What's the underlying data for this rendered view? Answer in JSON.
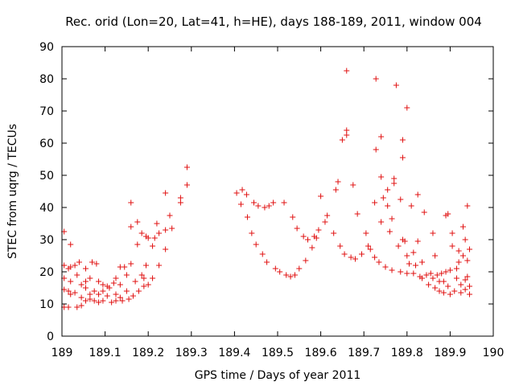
{
  "chart_data": {
    "type": "scatter",
    "title": "Rec. orid (Lon=20, Lat=41, h=HE), days 188-189, 2011, window 004",
    "xlabel": "GPS time / Days of year 2011",
    "ylabel": "STEC from uqrg / TECUs",
    "xlim": [
      189,
      190
    ],
    "ylim": [
      0,
      90
    ],
    "grid": false,
    "legend": "none",
    "x_ticks": [
      189,
      189.1,
      189.2,
      189.3,
      189.4,
      189.5,
      189.6,
      189.7,
      189.8,
      189.9,
      190
    ],
    "x_tick_labels": [
      "189",
      "189.1",
      "189.2",
      "189.3",
      "189.4",
      "189.5",
      "189.6",
      "189.7",
      "189.8",
      "189.9",
      "190"
    ],
    "y_ticks": [
      0,
      10,
      20,
      30,
      40,
      50,
      60,
      70,
      80,
      90
    ],
    "y_tick_labels": [
      "0",
      "10",
      "20",
      "30",
      "40",
      "50",
      "60",
      "70",
      "80",
      "90"
    ],
    "marker": "+",
    "color": "#e01010",
    "series": [
      {
        "name": "STEC",
        "points": [
          [
            189.005,
            32.5
          ],
          [
            189.005,
            22
          ],
          [
            189.005,
            18
          ],
          [
            189.005,
            14.5
          ],
          [
            189.005,
            9
          ],
          [
            189.015,
            21
          ],
          [
            189.015,
            14
          ],
          [
            189.015,
            9
          ],
          [
            189.02,
            28.5
          ],
          [
            189.02,
            21.5
          ],
          [
            189.02,
            17
          ],
          [
            189.02,
            13
          ],
          [
            189.03,
            22
          ],
          [
            189.03,
            13.5
          ],
          [
            189.035,
            19
          ],
          [
            189.035,
            9
          ],
          [
            189.04,
            23
          ],
          [
            189.045,
            16
          ],
          [
            189.045,
            12
          ],
          [
            189.045,
            9.5
          ],
          [
            189.055,
            21
          ],
          [
            189.055,
            17
          ],
          [
            189.055,
            15
          ],
          [
            189.055,
            11
          ],
          [
            189.065,
            18
          ],
          [
            189.065,
            13
          ],
          [
            189.065,
            11.5
          ],
          [
            189.07,
            23
          ],
          [
            189.075,
            14
          ],
          [
            189.075,
            11
          ],
          [
            189.08,
            22.5
          ],
          [
            189.085,
            17
          ],
          [
            189.085,
            13
          ],
          [
            189.085,
            10.5
          ],
          [
            189.095,
            16
          ],
          [
            189.095,
            14
          ],
          [
            189.095,
            11
          ],
          [
            189.105,
            15.5
          ],
          [
            189.105,
            12.5
          ],
          [
            189.11,
            15
          ],
          [
            189.115,
            10.5
          ],
          [
            189.12,
            16.5
          ],
          [
            189.125,
            18
          ],
          [
            189.125,
            13
          ],
          [
            189.125,
            11
          ],
          [
            189.135,
            21.5
          ],
          [
            189.135,
            16
          ],
          [
            189.135,
            12
          ],
          [
            189.14,
            11
          ],
          [
            189.145,
            21.5
          ],
          [
            189.15,
            19
          ],
          [
            189.15,
            14
          ],
          [
            189.155,
            11.5
          ],
          [
            189.16,
            22.5
          ],
          [
            189.16,
            34
          ],
          [
            189.16,
            41.5
          ],
          [
            189.165,
            12.5
          ],
          [
            189.17,
            17
          ],
          [
            189.175,
            28.5
          ],
          [
            189.175,
            35.5
          ],
          [
            189.178,
            14
          ],
          [
            189.185,
            32
          ],
          [
            189.185,
            19
          ],
          [
            189.19,
            18
          ],
          [
            189.19,
            15.5
          ],
          [
            189.195,
            22
          ],
          [
            189.195,
            31
          ],
          [
            189.2,
            30.5
          ],
          [
            189.2,
            16
          ],
          [
            189.21,
            18
          ],
          [
            189.21,
            28
          ],
          [
            189.215,
            30.5
          ],
          [
            189.22,
            35
          ],
          [
            189.225,
            32
          ],
          [
            189.225,
            22
          ],
          [
            189.24,
            27
          ],
          [
            189.24,
            33
          ],
          [
            189.24,
            44.5
          ],
          [
            189.25,
            37.5
          ],
          [
            189.255,
            33.5
          ],
          [
            189.275,
            41.5
          ],
          [
            189.275,
            43
          ],
          [
            189.29,
            47
          ],
          [
            189.29,
            52.5
          ],
          [
            189.405,
            44.5
          ],
          [
            189.415,
            41
          ],
          [
            189.418,
            45.5
          ],
          [
            189.428,
            44
          ],
          [
            189.43,
            37
          ],
          [
            189.44,
            32
          ],
          [
            189.445,
            41.5
          ],
          [
            189.45,
            28.5
          ],
          [
            189.455,
            40.5
          ],
          [
            189.465,
            25.5
          ],
          [
            189.47,
            40
          ],
          [
            189.475,
            23
          ],
          [
            189.48,
            40.5
          ],
          [
            189.49,
            41.5
          ],
          [
            189.495,
            21
          ],
          [
            189.505,
            20
          ],
          [
            189.515,
            41.5
          ],
          [
            189.52,
            19
          ],
          [
            189.53,
            18.5
          ],
          [
            189.535,
            37
          ],
          [
            189.54,
            19
          ],
          [
            189.545,
            33.5
          ],
          [
            189.55,
            21
          ],
          [
            189.56,
            31
          ],
          [
            189.565,
            23.5
          ],
          [
            189.57,
            30
          ],
          [
            189.58,
            27.5
          ],
          [
            189.585,
            31
          ],
          [
            189.59,
            30.5
          ],
          [
            189.595,
            33
          ],
          [
            189.6,
            43.5
          ],
          [
            189.61,
            35.5
          ],
          [
            189.615,
            37.5
          ],
          [
            189.63,
            32
          ],
          [
            189.635,
            45.5
          ],
          [
            189.64,
            48
          ],
          [
            189.645,
            28
          ],
          [
            189.65,
            61
          ],
          [
            189.655,
            25.5
          ],
          [
            189.66,
            62.5
          ],
          [
            189.66,
            64
          ],
          [
            189.66,
            82.5
          ],
          [
            189.67,
            24.5
          ],
          [
            189.675,
            47
          ],
          [
            189.68,
            24
          ],
          [
            189.685,
            38
          ],
          [
            189.695,
            25.5
          ],
          [
            189.705,
            32
          ],
          [
            189.71,
            28
          ],
          [
            189.715,
            27
          ],
          [
            189.725,
            24.5
          ],
          [
            189.725,
            41.5
          ],
          [
            189.728,
            58
          ],
          [
            189.728,
            80
          ],
          [
            189.735,
            23
          ],
          [
            189.74,
            35.5
          ],
          [
            189.74,
            49.5
          ],
          [
            189.74,
            62
          ],
          [
            189.745,
            43
          ],
          [
            189.75,
            21.5
          ],
          [
            189.755,
            45.5
          ],
          [
            189.755,
            40.5
          ],
          [
            189.76,
            32.5
          ],
          [
            189.765,
            20.5
          ],
          [
            189.765,
            36.5
          ],
          [
            189.77,
            47.5
          ],
          [
            189.77,
            49
          ],
          [
            189.775,
            78
          ],
          [
            189.78,
            28
          ],
          [
            189.785,
            20
          ],
          [
            189.785,
            42.5
          ],
          [
            189.79,
            30
          ],
          [
            189.79,
            55.5
          ],
          [
            189.79,
            61
          ],
          [
            189.795,
            29.5
          ],
          [
            189.8,
            19.5
          ],
          [
            189.8,
            25
          ],
          [
            189.8,
            71
          ],
          [
            189.805,
            22.5
          ],
          [
            189.81,
            40.5
          ],
          [
            189.815,
            26
          ],
          [
            189.815,
            19.5
          ],
          [
            189.82,
            22
          ],
          [
            189.825,
            44
          ],
          [
            189.825,
            29.5
          ],
          [
            189.83,
            18.5
          ],
          [
            189.835,
            23
          ],
          [
            189.835,
            18
          ],
          [
            189.84,
            38.5
          ],
          [
            189.845,
            19
          ],
          [
            189.85,
            16
          ],
          [
            189.855,
            19.5
          ],
          [
            189.86,
            32
          ],
          [
            189.86,
            18
          ],
          [
            189.865,
            15
          ],
          [
            189.865,
            25
          ],
          [
            189.87,
            19
          ],
          [
            189.875,
            14
          ],
          [
            189.875,
            17
          ],
          [
            189.88,
            19.5
          ],
          [
            189.885,
            13.5
          ],
          [
            189.885,
            17
          ],
          [
            189.89,
            20
          ],
          [
            189.89,
            37.5
          ],
          [
            189.895,
            38
          ],
          [
            189.895,
            15.5
          ],
          [
            189.9,
            13
          ],
          [
            189.9,
            20.5
          ],
          [
            189.905,
            28
          ],
          [
            189.905,
            32
          ],
          [
            189.91,
            14
          ],
          [
            189.915,
            18
          ],
          [
            189.915,
            21
          ],
          [
            189.92,
            23
          ],
          [
            189.92,
            26.5
          ],
          [
            189.925,
            16
          ],
          [
            189.925,
            13.5
          ],
          [
            189.93,
            34
          ],
          [
            189.93,
            25
          ],
          [
            189.935,
            17.5
          ],
          [
            189.935,
            30
          ],
          [
            189.935,
            14.5
          ],
          [
            189.94,
            23.5
          ],
          [
            189.94,
            18.5
          ],
          [
            189.94,
            40.5
          ],
          [
            189.945,
            13
          ],
          [
            189.945,
            15.5
          ],
          [
            189.945,
            27
          ]
        ]
      }
    ]
  }
}
